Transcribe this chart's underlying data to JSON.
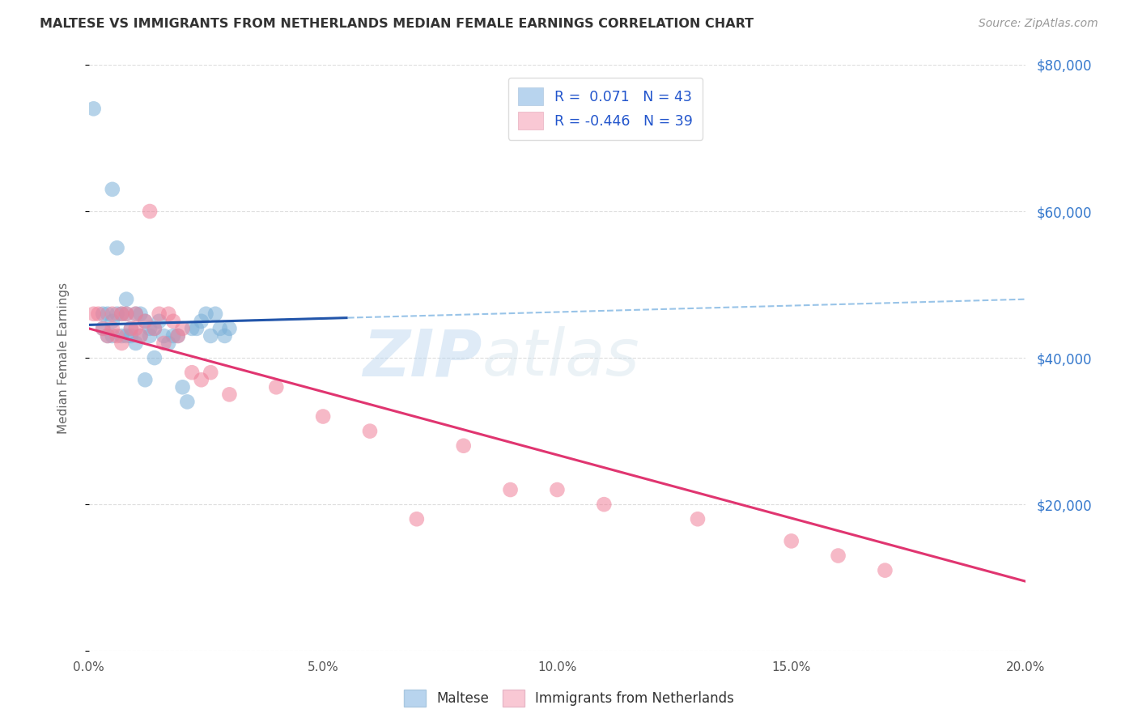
{
  "title": "MALTESE VS IMMIGRANTS FROM NETHERLANDS MEDIAN FEMALE EARNINGS CORRELATION CHART",
  "source": "Source: ZipAtlas.com",
  "ylabel": "Median Female Earnings",
  "xlim": [
    0,
    0.2
  ],
  "ylim": [
    0,
    80000
  ],
  "yticks": [
    0,
    20000,
    40000,
    60000,
    80000
  ],
  "xticks": [
    0.0,
    0.05,
    0.1,
    0.15,
    0.2
  ],
  "xtick_labels": [
    "0.0%",
    "5.0%",
    "10.0%",
    "15.0%",
    "20.0%"
  ],
  "right_ytick_labels": [
    "",
    "$20,000",
    "$40,000",
    "$60,000",
    "$80,000"
  ],
  "watermark_zip": "ZIP",
  "watermark_atlas": "atlas",
  "maltese_color": "#7ab0d8",
  "netherlands_color": "#f08099",
  "maltese_line_color": "#2255aa",
  "maltese_dash_color": "#99c4e8",
  "netherlands_line_color": "#e03570",
  "background_color": "#ffffff",
  "grid_color": "#dddddd",
  "maltese_x": [
    0.001,
    0.003,
    0.003,
    0.004,
    0.004,
    0.005,
    0.005,
    0.005,
    0.006,
    0.006,
    0.007,
    0.007,
    0.008,
    0.008,
    0.008,
    0.009,
    0.009,
    0.01,
    0.01,
    0.011,
    0.011,
    0.012,
    0.012,
    0.013,
    0.013,
    0.014,
    0.014,
    0.015,
    0.016,
    0.017,
    0.018,
    0.019,
    0.02,
    0.021,
    0.022,
    0.023,
    0.024,
    0.025,
    0.026,
    0.027,
    0.028,
    0.029,
    0.03
  ],
  "maltese_y": [
    74000,
    44000,
    46000,
    43000,
    46000,
    43000,
    45000,
    63000,
    46000,
    55000,
    46000,
    43000,
    46000,
    48000,
    43000,
    44000,
    43000,
    42000,
    46000,
    43000,
    46000,
    37000,
    45000,
    44000,
    43000,
    40000,
    44000,
    45000,
    43000,
    42000,
    43000,
    43000,
    36000,
    34000,
    44000,
    44000,
    45000,
    46000,
    43000,
    46000,
    44000,
    43000,
    44000
  ],
  "netherlands_x": [
    0.001,
    0.002,
    0.003,
    0.004,
    0.005,
    0.005,
    0.006,
    0.007,
    0.007,
    0.008,
    0.009,
    0.01,
    0.01,
    0.011,
    0.012,
    0.013,
    0.014,
    0.015,
    0.016,
    0.017,
    0.018,
    0.019,
    0.02,
    0.022,
    0.024,
    0.026,
    0.03,
    0.04,
    0.05,
    0.06,
    0.07,
    0.08,
    0.09,
    0.1,
    0.11,
    0.13,
    0.15,
    0.16,
    0.17
  ],
  "netherlands_y": [
    46000,
    46000,
    44000,
    43000,
    46000,
    44000,
    43000,
    46000,
    42000,
    46000,
    44000,
    46000,
    44000,
    43000,
    45000,
    60000,
    44000,
    46000,
    42000,
    46000,
    45000,
    43000,
    44000,
    38000,
    37000,
    38000,
    35000,
    36000,
    32000,
    30000,
    18000,
    28000,
    22000,
    22000,
    20000,
    18000,
    15000,
    13000,
    11000
  ],
  "maltese_line_x0": 0.0,
  "maltese_line_x_solid_end": 0.055,
  "maltese_line_x1": 0.2,
  "maltese_line_y0": 44500,
  "maltese_line_y1": 48000,
  "netherlands_line_x0": 0.0,
  "netherlands_line_x1": 0.2,
  "netherlands_line_y0": 44000,
  "netherlands_line_y1": 9500
}
